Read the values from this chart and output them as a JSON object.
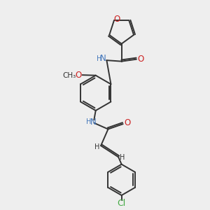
{
  "bg_color": "#eeeeee",
  "bond_color": "#333333",
  "n_color": "#4477bb",
  "o_color": "#cc2222",
  "cl_color": "#44aa44",
  "font_size": 8.0,
  "bond_width": 1.4,
  "figsize": [
    3.0,
    3.0
  ],
  "dpi": 100,
  "xlim": [
    0,
    10
  ],
  "ylim": [
    0,
    10
  ]
}
